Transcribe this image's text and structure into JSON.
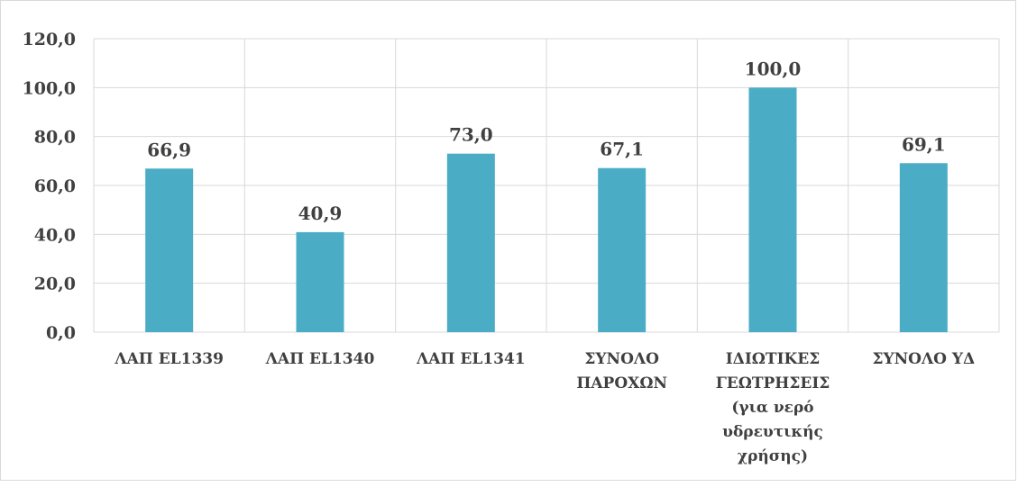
{
  "chart_data": {
    "type": "bar",
    "title": "",
    "xlabel": "",
    "ylabel": "",
    "ylim": [
      0,
      120
    ],
    "yticks": [
      0,
      20,
      40,
      60,
      80,
      100,
      120
    ],
    "ytick_labels": [
      "0,0",
      "20,0",
      "40,0",
      "60,0",
      "80,0",
      "100,0",
      "120,0"
    ],
    "grid": true,
    "legend": "none",
    "bar_color": "#4BACC6",
    "categories": [
      [
        "ΛΑΠ EL1339"
      ],
      [
        "ΛΑΠ EL1340"
      ],
      [
        "ΛΑΠ EL1341"
      ],
      [
        "ΣΥΝΟΛΟ",
        "ΠΑΡΟΧΩΝ"
      ],
      [
        "ΙΔΙΩΤΙΚΕΣ",
        "ΓΕΩΤΡΗΣΕΙΣ",
        "(για νερό",
        "υδρευτικής",
        "χρήσης)"
      ],
      [
        "ΣΥΝΟΛΟ ΥΔ"
      ]
    ],
    "values": [
      66.9,
      40.9,
      73.0,
      67.1,
      100.0,
      69.1
    ],
    "value_labels": [
      "66,9",
      "40,9",
      "73,0",
      "67,1",
      "100,0",
      "69,1"
    ]
  }
}
